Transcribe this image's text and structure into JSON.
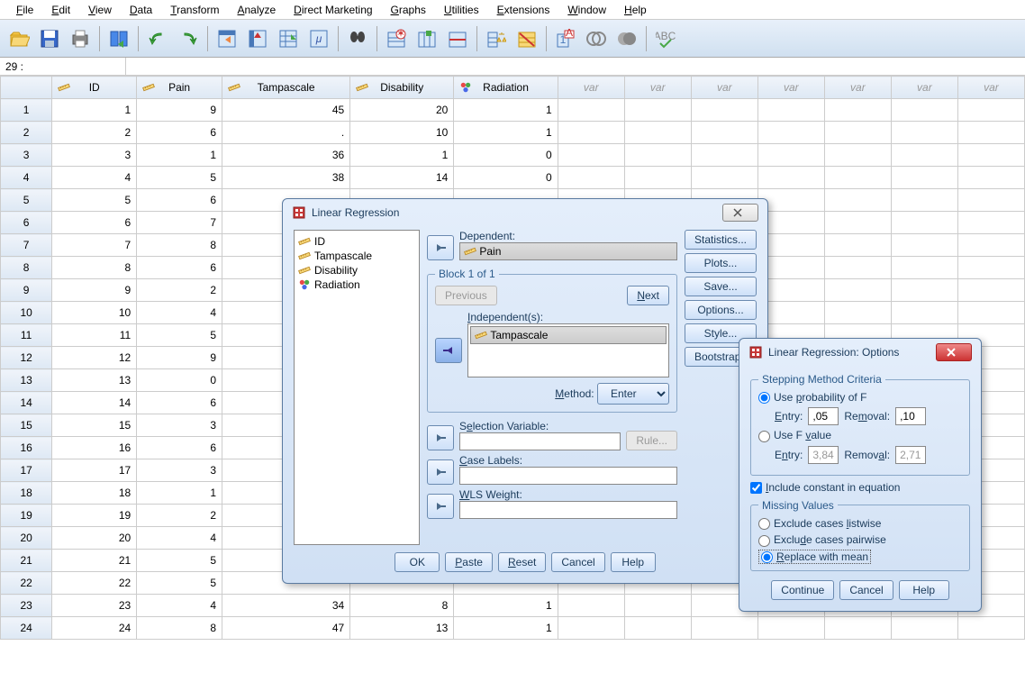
{
  "menubar": [
    "File",
    "Edit",
    "View",
    "Data",
    "Transform",
    "Analyze",
    "Direct Marketing",
    "Graphs",
    "Utilities",
    "Extensions",
    "Window",
    "Help"
  ],
  "cellbar": {
    "name": "29 :",
    "value": ""
  },
  "columns": [
    {
      "name": "ID",
      "icon": "ruler"
    },
    {
      "name": "Pain",
      "icon": "ruler"
    },
    {
      "name": "Tampascale",
      "icon": "ruler"
    },
    {
      "name": "Disability",
      "icon": "ruler"
    },
    {
      "name": "Radiation",
      "icon": "nominal"
    }
  ],
  "varcols": 7,
  "rows": [
    {
      "n": 1,
      "v": [
        1,
        9,
        45,
        20,
        1
      ]
    },
    {
      "n": 2,
      "v": [
        2,
        6,
        ".",
        10,
        1
      ]
    },
    {
      "n": 3,
      "v": [
        3,
        1,
        36,
        1,
        0
      ]
    },
    {
      "n": 4,
      "v": [
        4,
        5,
        38,
        14,
        0
      ]
    },
    {
      "n": 5,
      "v": [
        5,
        6,
        "",
        "",
        ""
      ]
    },
    {
      "n": 6,
      "v": [
        6,
        7,
        "",
        "",
        ""
      ]
    },
    {
      "n": 7,
      "v": [
        7,
        8,
        "",
        "",
        ""
      ]
    },
    {
      "n": 8,
      "v": [
        8,
        6,
        "",
        "",
        ""
      ]
    },
    {
      "n": 9,
      "v": [
        9,
        2,
        "",
        "",
        ""
      ]
    },
    {
      "n": 10,
      "v": [
        10,
        4,
        "",
        "",
        ""
      ]
    },
    {
      "n": 11,
      "v": [
        11,
        5,
        "",
        "",
        ""
      ]
    },
    {
      "n": 12,
      "v": [
        12,
        9,
        "",
        "",
        ""
      ]
    },
    {
      "n": 13,
      "v": [
        13,
        0,
        "",
        "",
        ""
      ]
    },
    {
      "n": 14,
      "v": [
        14,
        6,
        "",
        "",
        ""
      ]
    },
    {
      "n": 15,
      "v": [
        15,
        3,
        "",
        "",
        ""
      ]
    },
    {
      "n": 16,
      "v": [
        16,
        6,
        "",
        "",
        ""
      ]
    },
    {
      "n": 17,
      "v": [
        17,
        3,
        "",
        "",
        ""
      ]
    },
    {
      "n": 18,
      "v": [
        18,
        1,
        "",
        "",
        ""
      ]
    },
    {
      "n": 19,
      "v": [
        19,
        2,
        "",
        "",
        ""
      ]
    },
    {
      "n": 20,
      "v": [
        20,
        4,
        "",
        "",
        ""
      ]
    },
    {
      "n": 21,
      "v": [
        21,
        5,
        "",
        "",
        ""
      ]
    },
    {
      "n": 22,
      "v": [
        22,
        5,
        "",
        "",
        ""
      ]
    },
    {
      "n": 23,
      "v": [
        23,
        4,
        34,
        8,
        1
      ]
    },
    {
      "n": 24,
      "v": [
        24,
        8,
        47,
        13,
        1
      ]
    }
  ],
  "dlg1": {
    "title": "Linear Regression",
    "vars": [
      {
        "name": "ID",
        "icon": "ruler"
      },
      {
        "name": "Tampascale",
        "icon": "ruler"
      },
      {
        "name": "Disability",
        "icon": "ruler"
      },
      {
        "name": "Radiation",
        "icon": "nominal"
      }
    ],
    "dep_label": "Dependent:",
    "dep": "Pain",
    "block": "Block 1 of 1",
    "prev": "Previous",
    "next": "Next",
    "indep_label": "Independent(s):",
    "indep": [
      "Tampascale"
    ],
    "method_label": "Method:",
    "method": "Enter",
    "selvar": "Selection Variable:",
    "rule": "Rule...",
    "caselab": "Case Labels:",
    "wls": "WLS Weight:",
    "side": [
      "Statistics...",
      "Plots...",
      "Save...",
      "Options...",
      "Style...",
      "Bootstrap..."
    ],
    "bottom": [
      "OK",
      "Paste",
      "Reset",
      "Cancel",
      "Help"
    ]
  },
  "dlg2": {
    "title": "Linear Regression: Options",
    "step_legend": "Stepping Method Criteria",
    "opt_probF": "Use probability of F",
    "entry_l": "Entry:",
    "entry_v": ",05",
    "removal_l": "Removal:",
    "removal_v": ",10",
    "opt_F": "Use F value",
    "entry2_v": "3,84",
    "removal2_v": "2,71",
    "include": "Include constant in equation",
    "miss_legend": "Missing Values",
    "miss1": "Exclude cases listwise",
    "miss2": "Exclude cases pairwise",
    "miss3": "Replace with mean",
    "bottom": [
      "Continue",
      "Cancel",
      "Help"
    ]
  }
}
